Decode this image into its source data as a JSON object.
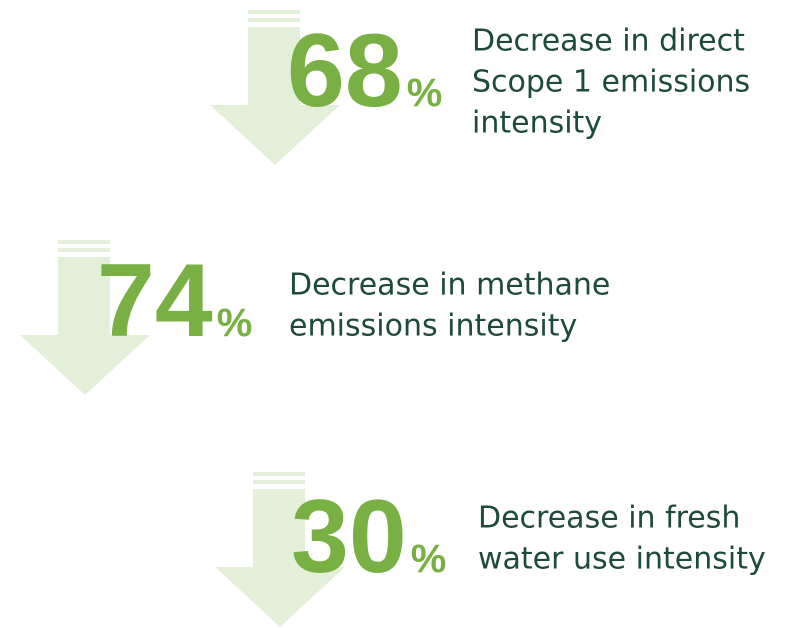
{
  "items": [
    {
      "number": "68",
      "unit": "%",
      "lines": [
        "Decrease in direct",
        "Scope 1 emissions",
        "intensity"
      ]
    },
    {
      "number": "74",
      "unit": "%",
      "lines": [
        "Decrease in methane",
        "emissions intensity"
      ]
    },
    {
      "number": "30",
      "unit": "%",
      "lines": [
        "Decrease in fresh",
        "water use intensity"
      ]
    }
  ]
}
